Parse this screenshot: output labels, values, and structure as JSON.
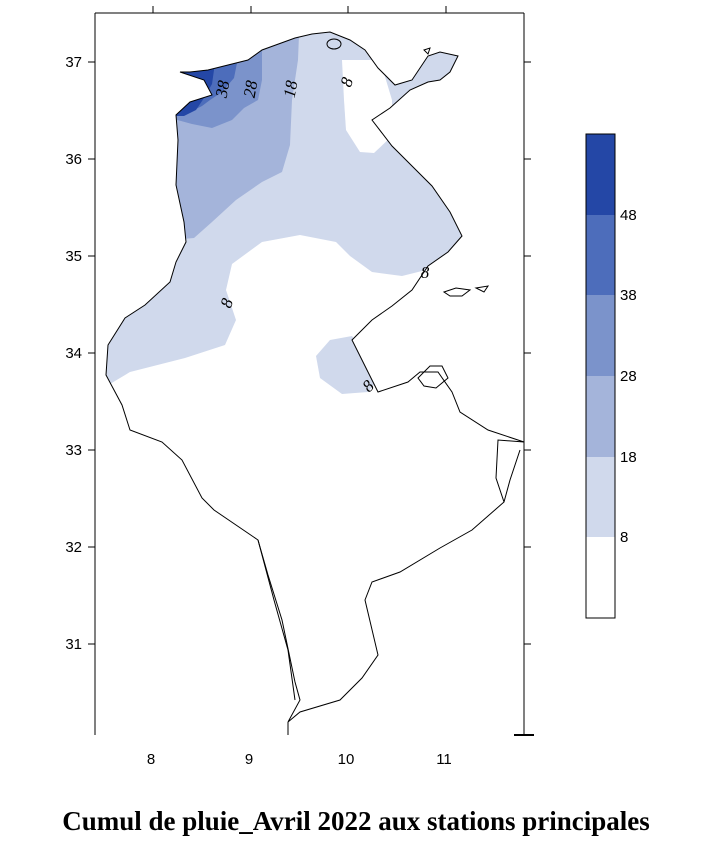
{
  "title": "Cumul de pluie_Avril 2022 aux stations principales",
  "axes": {
    "x_ticks": [
      "8",
      "9",
      "10",
      "11"
    ],
    "y_ticks": [
      "37",
      "36",
      "35",
      "34",
      "33",
      "32",
      "31"
    ]
  },
  "legend": {
    "colors": [
      "#ffffff",
      "#d0d9ec",
      "#a4b4da",
      "#7b93cb",
      "#4d6dbb",
      "#2447a6"
    ],
    "breaks": [
      "8",
      "18",
      "28",
      "38",
      "48"
    ],
    "placement": "right"
  },
  "contour_labels": [
    "38",
    "28",
    "18",
    "8",
    "8",
    "8",
    "8"
  ],
  "colors": {
    "outline": "#000000"
  }
}
